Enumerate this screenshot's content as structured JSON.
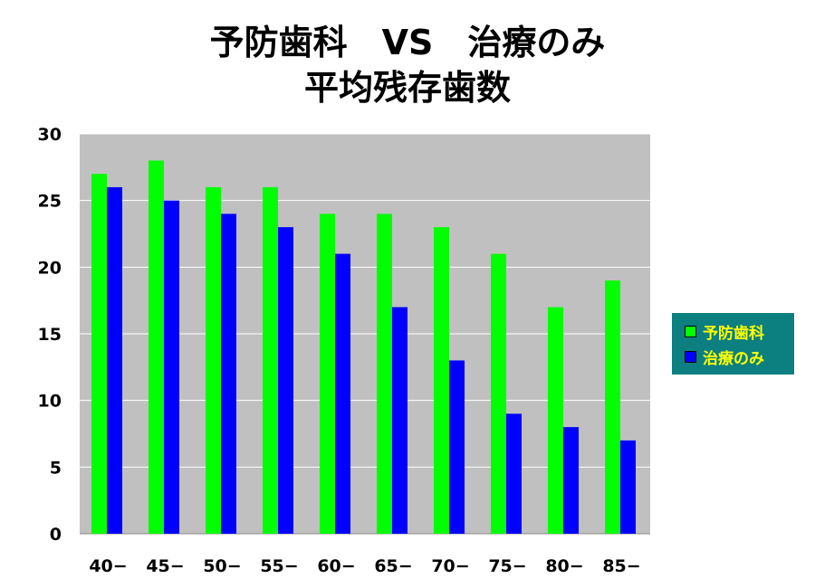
{
  "chart_data": {
    "type": "bar",
    "title_lines": [
      "予防歯科　VS　治療のみ",
      "平均残存歯数"
    ],
    "categories": [
      "40−",
      "45−",
      "50−",
      "55−",
      "60−",
      "65−",
      "70−",
      "75−",
      "80−",
      "85−"
    ],
    "series": [
      {
        "name": "予防歯科",
        "color": "#00ff00",
        "values": [
          27,
          28,
          26,
          26,
          24,
          24,
          23,
          21,
          17,
          19
        ]
      },
      {
        "name": "治療のみ",
        "color": "#0000ff",
        "values": [
          26,
          25,
          24,
          23,
          21,
          17,
          13,
          9,
          8,
          7
        ]
      }
    ],
    "yticks": [
      "0",
      "5",
      "10",
      "15",
      "20",
      "25",
      "30"
    ],
    "ylim": [
      0,
      30
    ],
    "grid": true,
    "plot_background": "#c0c0c0",
    "legend_background": "#0c7f81",
    "legend_text_color": "#ffff00",
    "legend_position": "right"
  }
}
